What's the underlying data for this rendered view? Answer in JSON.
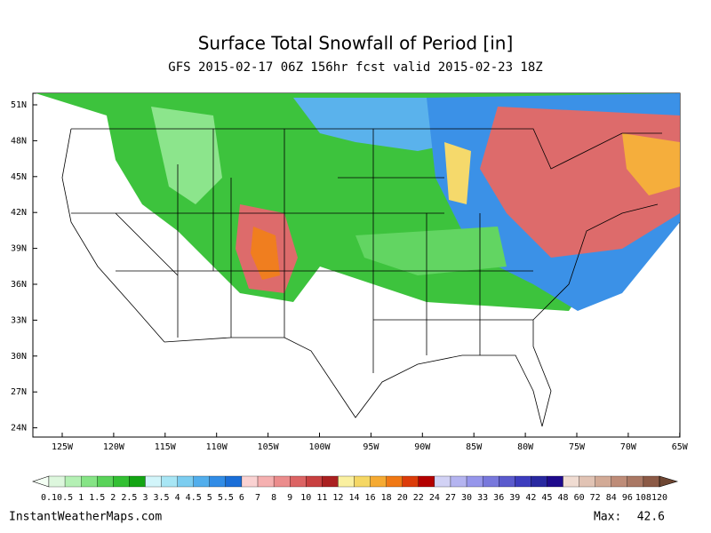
{
  "title": "Surface Total Snowfall of Period [in]",
  "subtitle": "GFS 2015-02-17 06Z 156hr fcst valid 2015-02-23 18Z",
  "lat_labels": [
    "51N",
    "48N",
    "45N",
    "42N",
    "39N",
    "36N",
    "33N",
    "30N",
    "27N",
    "24N"
  ],
  "lon_labels": [
    "125W",
    "120W",
    "115W",
    "110W",
    "105W",
    "100W",
    "95W",
    "90W",
    "85W",
    "80W",
    "75W",
    "70W",
    "65W"
  ],
  "colorbar": {
    "labels": [
      "0.1",
      "0.5",
      "1",
      "1.5",
      "2",
      "2.5",
      "3",
      "3.5",
      "4",
      "4.5",
      "5",
      "5.5",
      "6",
      "7",
      "8",
      "9",
      "10",
      "11",
      "12",
      "14",
      "16",
      "18",
      "20",
      "22",
      "24",
      "27",
      "30",
      "33",
      "36",
      "39",
      "42",
      "45",
      "48",
      "60",
      "72",
      "84",
      "96",
      "108",
      "120"
    ],
    "colors": [
      "#ddf7dd",
      "#b4f0b4",
      "#86e486",
      "#5ad35a",
      "#33c033",
      "#14a514",
      "#d2f5fa",
      "#a8e6f5",
      "#7ccdf0",
      "#52aeec",
      "#318ce6",
      "#1a6ed8",
      "#fad2d2",
      "#f5b0b0",
      "#eb8c8c",
      "#dc6464",
      "#c84040",
      "#aa2020",
      "#faf0a0",
      "#f5d764",
      "#f5aa32",
      "#f07814",
      "#dc3c0a",
      "#b40000",
      "#d2d2f5",
      "#b4b4f0",
      "#9696eb",
      "#7878dc",
      "#5a5acd",
      "#3c3cbe",
      "#2828a0",
      "#1e0a8c",
      "#f0dcd2",
      "#e1c3b4",
      "#d2aa96",
      "#be8c78",
      "#aa7864",
      "#8c5a46"
    ]
  },
  "footer": {
    "source": "InstantWeatherMaps.com",
    "max_label": "Max:",
    "max_value": 42.6
  }
}
